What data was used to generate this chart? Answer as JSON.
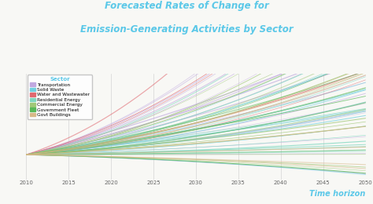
{
  "title_line1": "Forecasted Rates of Change for",
  "title_line2": "Emission-Generating Activities by Sector",
  "title_color": "#5bc8e8",
  "xlabel": "Time horizon",
  "xlabel_color": "#5bc8e8",
  "background_color": "#f8f8f5",
  "plot_bg_color": "#f8f8f5",
  "x_start": 2010,
  "x_end": 2050,
  "x_ticks": [
    2010,
    2015,
    2020,
    2025,
    2030,
    2035,
    2040,
    2045,
    2050
  ],
  "legend_title": "Sector",
  "legend_title_color": "#5bc8e8",
  "sectors": [
    {
      "name": "Transportation",
      "color": "#c0a8e0",
      "n": 22,
      "rate_min": -0.008,
      "rate_max": 0.055,
      "curve_min": 0.3,
      "curve_max": 2.0
    },
    {
      "name": "Solid Waste",
      "color": "#70d0e0",
      "n": 10,
      "rate_min": -0.006,
      "rate_max": 0.03,
      "curve_min": 0.2,
      "curve_max": 1.5
    },
    {
      "name": "Water and Wastewater",
      "color": "#e06870",
      "n": 5,
      "rate_min": -0.003,
      "rate_max": 0.075,
      "curve_min": 0.5,
      "curve_max": 2.5
    },
    {
      "name": "Residential Energy",
      "color": "#80d8c0",
      "n": 14,
      "rate_min": -0.007,
      "rate_max": 0.04,
      "curve_min": 0.2,
      "curve_max": 1.8
    },
    {
      "name": "Commercial Energy",
      "color": "#a0c878",
      "n": 14,
      "rate_min": -0.007,
      "rate_max": 0.04,
      "curve_min": 0.2,
      "curve_max": 1.8
    },
    {
      "name": "Government Fleet",
      "color": "#58b858",
      "n": 8,
      "rate_min": -0.005,
      "rate_max": 0.03,
      "curve_min": 0.2,
      "curve_max": 1.5
    },
    {
      "name": "Govt Buildings",
      "color": "#d8b888",
      "n": 7,
      "rate_min": -0.005,
      "rate_max": 0.025,
      "curve_min": 0.2,
      "curve_max": 1.5
    }
  ],
  "ylim_min": -0.55,
  "ylim_max": 1.8,
  "seed": 17,
  "alpha_min": 0.5,
  "alpha_max": 0.8,
  "lw_min": 0.4,
  "lw_max": 0.9
}
